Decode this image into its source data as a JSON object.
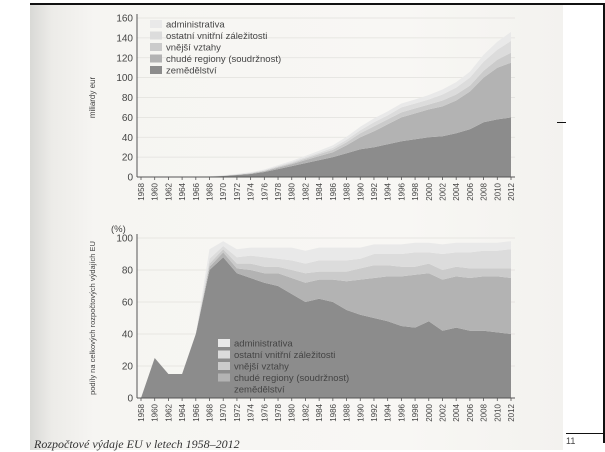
{
  "caption": "Rozpočtové výdaje EU v letech 1958–2012",
  "slide_number": "11",
  "colors": {
    "zemedelstvi": "#8c8c8c",
    "chude_regiony": "#b3b3b3",
    "vnejsi_vztahy": "#cbcbcb",
    "ostatni": "#dcdcdc",
    "administrativa": "#e9e9e9"
  },
  "chart_data": [
    {
      "type": "area",
      "stacked": true,
      "title": "",
      "xlabel": "",
      "ylabel": "miliardy eur",
      "ylim": [
        0,
        160
      ],
      "yticks": [
        0,
        20,
        40,
        60,
        80,
        100,
        120,
        140,
        160
      ],
      "xticks": [
        "1958",
        "1960",
        "1962",
        "1964",
        "1966",
        "1968",
        "1970",
        "1972",
        "1974",
        "1976",
        "1978",
        "1980",
        "1982",
        "1984",
        "1986",
        "1988",
        "1990",
        "1992",
        "1994",
        "1996",
        "1998",
        "2000",
        "2002",
        "2004",
        "2006",
        "2008",
        "2010",
        "2012"
      ],
      "legend_position": "top-left",
      "x": [
        1958,
        1960,
        1962,
        1964,
        1966,
        1968,
        1970,
        1972,
        1974,
        1976,
        1978,
        1980,
        1982,
        1984,
        1986,
        1988,
        1990,
        1992,
        1994,
        1996,
        1998,
        2000,
        2002,
        2004,
        2006,
        2008,
        2010,
        2012
      ],
      "series": [
        {
          "name": "zemědělství",
          "values": [
            0,
            0,
            0,
            0,
            0.1,
            0.5,
            1,
            2,
            3,
            5,
            8,
            11,
            14,
            17,
            20,
            24,
            28,
            30,
            33,
            36,
            38,
            40,
            41,
            44,
            48,
            55,
            58,
            60
          ]
        },
        {
          "name": "chudé regiony (soudržnost)",
          "values": [
            0,
            0,
            0,
            0,
            0,
            0,
            0.1,
            0.2,
            0.5,
            0.8,
            1.5,
            2,
            3,
            4,
            5,
            8,
            12,
            16,
            20,
            24,
            26,
            28,
            30,
            33,
            38,
            45,
            52,
            55
          ]
        },
        {
          "name": "vnější vztahy",
          "values": [
            0,
            0,
            0,
            0,
            0,
            0,
            0.1,
            0.2,
            0.3,
            0.5,
            0.8,
            1,
            1.5,
            2,
            2.5,
            3,
            4,
            5,
            5,
            5,
            5,
            5,
            6,
            6,
            6,
            7,
            8,
            10
          ]
        },
        {
          "name": "ostatní vnitřní záležitosti",
          "values": [
            0,
            0,
            0,
            0,
            0,
            0.1,
            0.2,
            0.3,
            0.4,
            0.5,
            0.7,
            1,
            1.2,
            1.5,
            2,
            2.5,
            3,
            4,
            4,
            5,
            5,
            5,
            6,
            7,
            8,
            9,
            10,
            12
          ]
        },
        {
          "name": "administrativa",
          "values": [
            0,
            0,
            0,
            0,
            0.1,
            0.2,
            0.3,
            0.4,
            0.5,
            0.7,
            1,
            1.2,
            1.5,
            2,
            2.5,
            3,
            3.5,
            4,
            4,
            4,
            4,
            4.5,
            5,
            5.5,
            6,
            7,
            8,
            9
          ]
        }
      ]
    },
    {
      "type": "area",
      "stacked": true,
      "title": "",
      "xlabel": "",
      "ylabel": "podíly na celkových rozpočtových výdajích EU",
      "unit_label": "(%)",
      "ylim": [
        0,
        100
      ],
      "yticks": [
        0,
        20,
        40,
        60,
        80,
        100
      ],
      "xticks": [
        "1958",
        "1960",
        "1962",
        "1964",
        "1966",
        "1968",
        "1970",
        "1972",
        "1974",
        "1976",
        "1978",
        "1980",
        "1982",
        "1984",
        "1986",
        "1988",
        "1990",
        "1992",
        "1994",
        "1996",
        "1998",
        "2000",
        "2002",
        "2004",
        "2006",
        "2008",
        "2010",
        "2012"
      ],
      "legend_position": "bottom-center",
      "x": [
        1958,
        1960,
        1962,
        1964,
        1966,
        1968,
        1970,
        1972,
        1974,
        1976,
        1978,
        1980,
        1982,
        1984,
        1986,
        1988,
        1990,
        1992,
        1994,
        1996,
        1998,
        2000,
        2002,
        2004,
        2006,
        2008,
        2010,
        2012
      ],
      "series": [
        {
          "name": "zemědělství",
          "values": [
            0,
            25,
            15,
            15,
            40,
            80,
            88,
            78,
            75,
            72,
            70,
            65,
            60,
            62,
            60,
            55,
            52,
            50,
            48,
            45,
            44,
            48,
            42,
            44,
            42,
            42,
            41,
            40
          ]
        },
        {
          "name": "chudé regiony (soudržnost)",
          "values": [
            0,
            0,
            0,
            0,
            0,
            2,
            3,
            3,
            5,
            6,
            8,
            10,
            12,
            12,
            14,
            18,
            22,
            25,
            28,
            31,
            33,
            30,
            32,
            32,
            33,
            34,
            35,
            35
          ]
        },
        {
          "name": "vnější vztahy",
          "values": [
            0,
            0,
            0,
            0,
            0,
            2,
            2,
            3,
            4,
            4,
            4,
            5,
            6,
            5,
            5,
            6,
            7,
            8,
            7,
            6,
            5,
            6,
            6,
            6,
            6,
            5,
            5,
            6
          ]
        },
        {
          "name": "ostatní vnitřní záležitosti",
          "values": [
            0,
            0,
            0,
            0,
            0,
            3,
            2,
            4,
            5,
            6,
            5,
            6,
            6,
            7,
            7,
            7,
            6,
            7,
            7,
            8,
            9,
            7,
            10,
            9,
            10,
            11,
            11,
            12
          ]
        },
        {
          "name": "administrativa",
          "values": [
            0,
            0,
            0,
            0,
            0,
            6,
            3,
            5,
            5,
            6,
            7,
            8,
            8,
            8,
            8,
            8,
            7,
            6,
            6,
            6,
            6,
            6,
            6,
            6,
            6,
            5,
            5,
            5
          ]
        }
      ]
    }
  ]
}
